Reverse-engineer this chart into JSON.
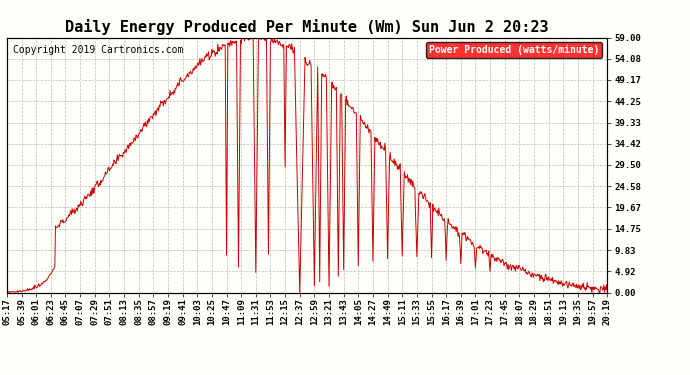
{
  "title": "Daily Energy Produced Per Minute (Wm) Sun Jun 2 20:23",
  "copyright": "Copyright 2019 Cartronics.com",
  "legend_label": "Power Produced (watts/minute)",
  "line_color": "#cc0000",
  "bg_color": "#fffffa",
  "grid_color": "#bbbbbb",
  "y_min": 0.0,
  "y_max": 59.0,
  "y_ticks": [
    0.0,
    4.92,
    9.83,
    14.75,
    19.67,
    24.58,
    29.5,
    34.42,
    39.33,
    44.25,
    49.17,
    54.08,
    59.0
  ],
  "x_labels": [
    "05:17",
    "05:39",
    "06:01",
    "06:23",
    "06:45",
    "07:07",
    "07:29",
    "07:51",
    "08:13",
    "08:35",
    "08:57",
    "09:19",
    "09:41",
    "10:03",
    "10:25",
    "10:47",
    "11:09",
    "11:31",
    "11:53",
    "12:15",
    "12:37",
    "12:59",
    "13:21",
    "13:43",
    "14:05",
    "14:27",
    "14:49",
    "15:11",
    "15:33",
    "15:55",
    "16:17",
    "16:39",
    "17:01",
    "17:23",
    "17:45",
    "18:07",
    "18:29",
    "18:51",
    "19:13",
    "19:35",
    "19:57",
    "20:19"
  ],
  "title_fontsize": 11,
  "copyright_fontsize": 7,
  "tick_fontsize": 6.5,
  "legend_fontsize": 7
}
